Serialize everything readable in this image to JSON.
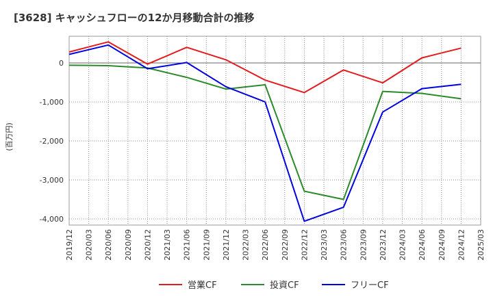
{
  "chart_data": {
    "type": "line",
    "title": "[3628]  キャッシュフローの12か月移動合計の推移",
    "ylabel": "(百万円)",
    "xlabel": "",
    "ylim": [
      -4200,
      700
    ],
    "yticks": [
      0,
      -1000,
      -2000,
      -3000,
      -4000
    ],
    "ytick_labels": [
      "0",
      "-1,000",
      "-2,000",
      "-3,000",
      "-4,000"
    ],
    "x_ticks": [
      "2019/12",
      "2020/03",
      "2020/06",
      "2020/09",
      "2020/12",
      "2021/03",
      "2021/06",
      "2021/09",
      "2021/12",
      "2022/03",
      "2022/06",
      "2022/09",
      "2022/12",
      "2023/03",
      "2023/06",
      "2023/09",
      "2023/12",
      "2024/03",
      "2024/06",
      "2024/09",
      "2024/12",
      "2025/03"
    ],
    "grid": true,
    "legend_position": "bottom",
    "series": [
      {
        "name": "営業CF",
        "color": "#e41a1c",
        "points": [
          {
            "x": "2019/12",
            "y": 280
          },
          {
            "x": "2020/06",
            "y": 540
          },
          {
            "x": "2020/12",
            "y": -30
          },
          {
            "x": "2021/06",
            "y": 400
          },
          {
            "x": "2021/12",
            "y": 80
          },
          {
            "x": "2022/06",
            "y": -440
          },
          {
            "x": "2022/12",
            "y": -760
          },
          {
            "x": "2023/06",
            "y": -180
          },
          {
            "x": "2023/12",
            "y": -510
          },
          {
            "x": "2024/06",
            "y": 130
          },
          {
            "x": "2024/12",
            "y": 380
          }
        ]
      },
      {
        "name": "投資CF",
        "color": "#2a8a2a",
        "points": [
          {
            "x": "2019/12",
            "y": -60
          },
          {
            "x": "2020/06",
            "y": -70
          },
          {
            "x": "2020/12",
            "y": -130
          },
          {
            "x": "2021/06",
            "y": -370
          },
          {
            "x": "2021/12",
            "y": -670
          },
          {
            "x": "2022/06",
            "y": -560
          },
          {
            "x": "2022/12",
            "y": -3290
          },
          {
            "x": "2023/06",
            "y": -3500
          },
          {
            "x": "2023/12",
            "y": -730
          },
          {
            "x": "2024/06",
            "y": -780
          },
          {
            "x": "2024/12",
            "y": -920
          }
        ]
      },
      {
        "name": "フリーCF",
        "color": "#0000e0",
        "points": [
          {
            "x": "2019/12",
            "y": 220
          },
          {
            "x": "2020/06",
            "y": 460
          },
          {
            "x": "2020/12",
            "y": -150
          },
          {
            "x": "2021/06",
            "y": 10
          },
          {
            "x": "2021/12",
            "y": -610
          },
          {
            "x": "2022/06",
            "y": -1000
          },
          {
            "x": "2022/12",
            "y": -4060
          },
          {
            "x": "2023/06",
            "y": -3700
          },
          {
            "x": "2023/12",
            "y": -1260
          },
          {
            "x": "2024/06",
            "y": -660
          },
          {
            "x": "2024/12",
            "y": -550
          }
        ]
      }
    ]
  }
}
